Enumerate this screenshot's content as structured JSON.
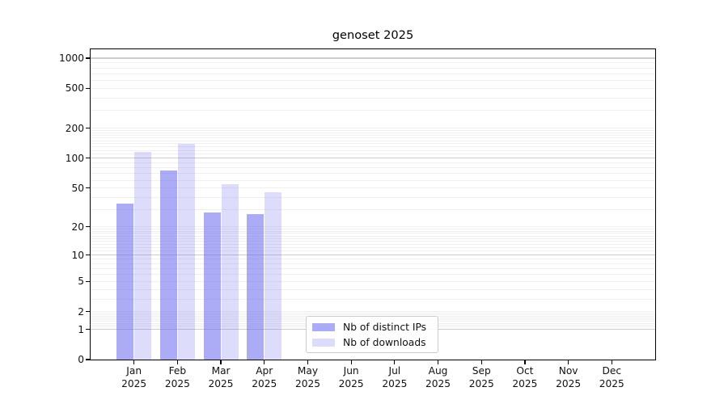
{
  "title": "genoset 2025",
  "legend": {
    "items": [
      {
        "key": "ips",
        "label": "Nb of distinct IPs"
      },
      {
        "key": "downloads",
        "label": "Nb of downloads"
      }
    ]
  },
  "colors": {
    "bar_ips": "rgba(102,102,238,0.55)",
    "bar_downloads": "rgba(102,102,238,0.22)",
    "grid_major": "#cccccc",
    "grid_minor": "#f0f0f0",
    "axis": "#000000",
    "legend_border": "#cccccc"
  },
  "chart_data": {
    "type": "bar",
    "title": "genoset 2025",
    "categories": [
      "Jan",
      "Feb",
      "Mar",
      "Apr",
      "May",
      "Jun",
      "Jul",
      "Aug",
      "Sep",
      "Oct",
      "Nov",
      "Dec"
    ],
    "year_label": "2025",
    "series": [
      {
        "name": "Nb of distinct IPs",
        "values": [
          35,
          75,
          28,
          27,
          0,
          0,
          0,
          0,
          0,
          0,
          0,
          0
        ]
      },
      {
        "name": "Nb of downloads",
        "values": [
          115,
          140,
          55,
          45,
          0,
          0,
          0,
          0,
          0,
          0,
          0,
          0
        ]
      }
    ],
    "yscale": "log1p",
    "yticks": [
      0,
      1,
      2,
      5,
      10,
      20,
      50,
      100,
      200,
      500,
      1000
    ],
    "ylim": [
      0,
      1250
    ],
    "grid": true,
    "legend_position": "lower center"
  }
}
